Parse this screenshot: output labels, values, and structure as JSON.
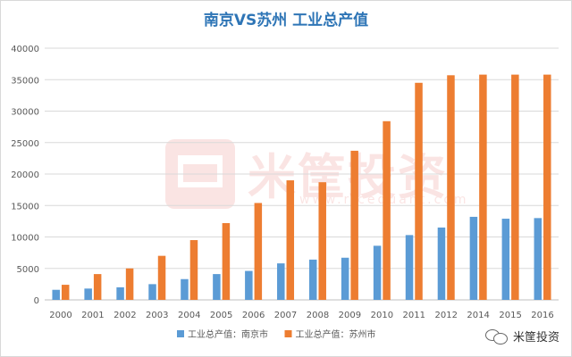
{
  "chart_data": {
    "type": "bar",
    "title": "南京VS苏州 工业总产值",
    "categories": [
      "2000",
      "2001",
      "2002",
      "2003",
      "2004",
      "2005",
      "2006",
      "2007",
      "2008",
      "2009",
      "2010",
      "2011",
      "2012",
      "2014",
      "2015",
      "2016"
    ],
    "series": [
      {
        "name": "工业总产值：南京市",
        "color": "#5b9bd5",
        "values": [
          1600,
          1800,
          2000,
          2500,
          3300,
          4100,
          4600,
          5800,
          6400,
          6700,
          8600,
          10300,
          11500,
          13200,
          12900,
          13000
        ]
      },
      {
        "name": "工业总产值：苏州市",
        "color": "#ed7d31",
        "values": [
          2400,
          4100,
          5000,
          7000,
          9500,
          12200,
          15400,
          19000,
          18700,
          23700,
          28400,
          34500,
          35700,
          35800,
          35800,
          35800
        ]
      }
    ],
    "ylim": [
      0,
      40000
    ],
    "yticks": [
      0,
      5000,
      10000,
      15000,
      20000,
      25000,
      30000,
      35000,
      40000
    ],
    "grid": true,
    "legend": "bottom"
  },
  "watermark": {
    "text": "米筐投资",
    "url": "www.ricequant.com"
  },
  "brand": {
    "label": "米筐投资",
    "icon": "wechat-icon"
  }
}
